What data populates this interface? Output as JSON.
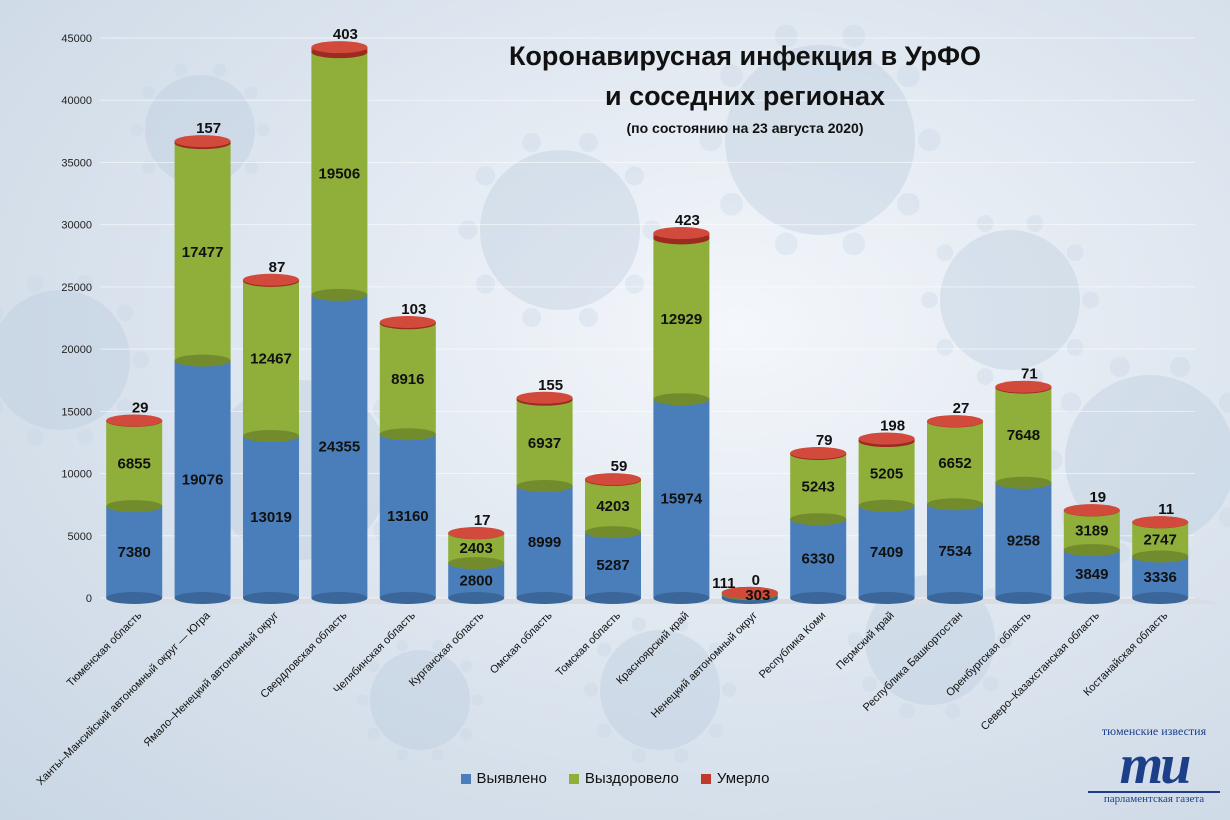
{
  "title": {
    "line1": "Коронавирусная инфекция в УрФО",
    "line2": "и соседних регионах",
    "line3": "(по состоянию на 23 августа 2020)"
  },
  "legend": {
    "detected": "Выявлено",
    "recovered": "Выздоровело",
    "died": "Умерло"
  },
  "logo": {
    "top": "тюменские известия",
    "mark": "ти",
    "bottom": "парламентская газета"
  },
  "colors": {
    "detected": "#4a7ebb",
    "recovered": "#8fae3a",
    "died": "#c0392b"
  },
  "chart_data": {
    "type": "bar",
    "stacked": true,
    "title": "Коронавирусная инфекция в УрФО и соседних регионах",
    "ylim": [
      0,
      45000
    ],
    "yticks": [
      0,
      5000,
      10000,
      15000,
      20000,
      25000,
      30000,
      35000,
      40000,
      45000
    ],
    "categories": [
      "Тюменская область",
      "Ханты–Мансийский автономный округ — Югра",
      "Ямало–Ненецкий автономный округ",
      "Свердловская область",
      "Челябинская область",
      "Курганская область",
      "Омская область",
      "Томская область",
      "Красноярский край",
      "Ненецкий автономный округ",
      "Республика Коми",
      "Пермский край",
      "Республика Башкортостан",
      "Оренбургская область",
      "Северо–Казахстанская область",
      "Костанайская область"
    ],
    "series": [
      {
        "name": "Выявлено",
        "values": [
          7380,
          19076,
          13019,
          24355,
          13160,
          2800,
          8999,
          5287,
          15974,
          303,
          6330,
          7409,
          7534,
          9258,
          3849,
          3336
        ]
      },
      {
        "name": "Выздоровело",
        "values": [
          6855,
          17477,
          12467,
          19506,
          8916,
          2403,
          6937,
          4203,
          12929,
          111,
          5243,
          5205,
          6652,
          7648,
          3189,
          2747
        ]
      },
      {
        "name": "Умерло",
        "values": [
          29,
          157,
          87,
          403,
          103,
          17,
          155,
          59,
          423,
          0,
          79,
          198,
          27,
          71,
          19,
          11
        ]
      }
    ],
    "legend_position": "bottom"
  }
}
